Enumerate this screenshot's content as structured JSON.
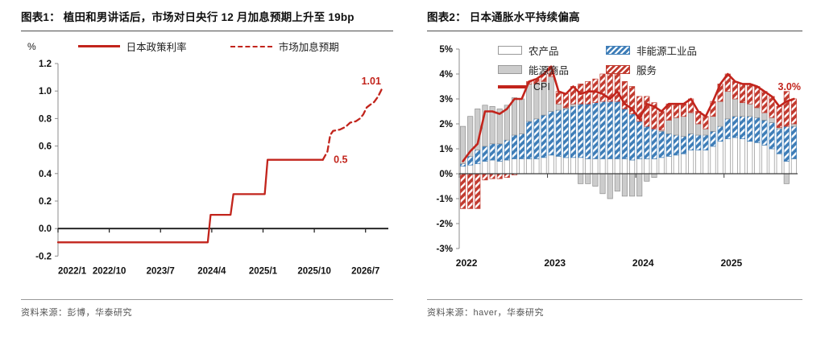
{
  "figure1": {
    "title": "图表1：  植田和男讲话后，市场对日央行 12 月加息预期上升至 19bp",
    "unit": "%",
    "legend": [
      {
        "label": "日本政策利率"
      },
      {
        "label": "市场加息预期"
      }
    ],
    "source": "资料来源：彭博，华泰研究"
  },
  "figure2": {
    "title": "图表2：  日本通胀水平持续偏高",
    "legend": [
      {
        "label": "农产品"
      },
      {
        "label": "非能源工业品"
      },
      {
        "label": "能源商品"
      },
      {
        "label": "服务"
      },
      {
        "label": "CPI"
      }
    ],
    "source": "资料来源：haver，华泰研究"
  },
  "colors": {
    "red_line": "#C2241C",
    "red_hatch": "#C23B30",
    "blue_hatch": "#3F7EB8",
    "gray_bar": "#CCCCCC",
    "bar_border": "#8F8F8F",
    "axis_dark": "#1A1A1A",
    "axis_gray": "#8C8C8C"
  },
  "chart_data": [
    {
      "type": "line",
      "title": "植田和男讲话后，市场对日央行12月加息预期上升至19bp",
      "ylabel": "%",
      "ylim": [
        -0.2,
        1.2
      ],
      "yticks": [
        -0.2,
        0.0,
        0.2,
        0.4,
        0.6,
        0.8,
        1.0,
        1.2
      ],
      "x_unit": "months since 2022/1",
      "xlim": [
        0,
        58
      ],
      "xticks": [
        {
          "pos": 0,
          "label": "2022/1"
        },
        {
          "pos": 9,
          "label": "2022/10"
        },
        {
          "pos": 18,
          "label": "2023/7"
        },
        {
          "pos": 27,
          "label": "2024/4"
        },
        {
          "pos": 36,
          "label": "2025/1"
        },
        {
          "pos": 45,
          "label": "2025/10"
        },
        {
          "pos": 54,
          "label": "2026/7"
        }
      ],
      "series": [
        {
          "name": "日本政策利率",
          "style": "solid",
          "points": [
            [
              0,
              -0.1
            ],
            [
              26.3,
              -0.1
            ],
            [
              26.8,
              0.1
            ],
            [
              30.3,
              0.1
            ],
            [
              30.8,
              0.25
            ],
            [
              36.3,
              0.25
            ],
            [
              36.8,
              0.5
            ],
            [
              46.5,
              0.5
            ]
          ]
        },
        {
          "name": "市场加息预期",
          "style": "dashed",
          "points": [
            [
              46.5,
              0.5
            ],
            [
              47.3,
              0.56
            ],
            [
              47.8,
              0.68
            ],
            [
              48.3,
              0.71
            ],
            [
              49.5,
              0.72
            ],
            [
              50.5,
              0.74
            ],
            [
              51.3,
              0.77
            ],
            [
              52.3,
              0.78
            ],
            [
              53.0,
              0.8
            ],
            [
              53.6,
              0.83
            ],
            [
              54.2,
              0.88
            ],
            [
              54.8,
              0.9
            ],
            [
              55.5,
              0.92
            ],
            [
              56.2,
              0.96
            ],
            [
              56.8,
              1.01
            ]
          ]
        }
      ],
      "annotations": [
        {
          "x": 48.4,
          "y": 0.5,
          "text": "0.5",
          "anchor": "start"
        },
        {
          "x": 55.0,
          "y": 1.07,
          "text": "1.01",
          "anchor": "middle"
        }
      ],
      "legend_position": "top"
    },
    {
      "type": "stacked-bar-line",
      "title": "日本通胀水平持续偏高",
      "ylim": [
        -3,
        5
      ],
      "yticks": [
        5,
        4,
        3,
        2,
        1,
        0,
        -1,
        -2,
        -3
      ],
      "ytick_suffix": "%",
      "categories": [
        "2022-01",
        "2022-02",
        "2022-03",
        "2022-04",
        "2022-05",
        "2022-06",
        "2022-07",
        "2022-08",
        "2022-09",
        "2022-10",
        "2022-11",
        "2022-12",
        "2023-01",
        "2023-02",
        "2023-03",
        "2023-04",
        "2023-05",
        "2023-06",
        "2023-07",
        "2023-08",
        "2023-09",
        "2023-10",
        "2023-11",
        "2023-12",
        "2024-01",
        "2024-02",
        "2024-03",
        "2024-04",
        "2024-05",
        "2024-06",
        "2024-07",
        "2024-08",
        "2024-09",
        "2024-10",
        "2024-11",
        "2024-12",
        "2025-01",
        "2025-02",
        "2025-03",
        "2025-04",
        "2025-05",
        "2025-06",
        "2025-07",
        "2025-08",
        "2025-09",
        "2025-10"
      ],
      "xticks": [
        {
          "index": 0,
          "label": "2022"
        },
        {
          "index": 12,
          "label": "2023"
        },
        {
          "index": 24,
          "label": "2024"
        },
        {
          "index": 36,
          "label": "2025"
        }
      ],
      "series": [
        {
          "name": "农产品",
          "swatch": "white",
          "values": [
            0.3,
            0.35,
            0.4,
            0.5,
            0.55,
            0.5,
            0.55,
            0.6,
            0.6,
            0.6,
            0.6,
            0.65,
            0.75,
            0.7,
            0.65,
            0.65,
            0.65,
            0.6,
            0.6,
            0.6,
            0.6,
            0.6,
            0.6,
            0.55,
            0.6,
            0.6,
            0.6,
            0.65,
            0.7,
            0.75,
            0.8,
            0.95,
            0.95,
            0.95,
            1.1,
            1.3,
            1.4,
            1.45,
            1.4,
            1.3,
            1.25,
            1.15,
            1.0,
            0.8,
            0.5,
            0.6
          ]
        },
        {
          "name": "非能源工业品",
          "swatch": "blue-hatch",
          "values": [
            0.1,
            0.35,
            0.55,
            0.6,
            0.65,
            0.7,
            0.8,
            0.95,
            1.0,
            1.5,
            1.6,
            1.7,
            1.75,
            1.85,
            1.95,
            2.05,
            2.15,
            2.2,
            2.25,
            2.3,
            2.3,
            2.3,
            2.0,
            1.85,
            1.5,
            1.3,
            1.2,
            1.05,
            0.9,
            0.8,
            0.7,
            0.65,
            0.6,
            0.6,
            0.6,
            0.6,
            0.8,
            0.85,
            0.9,
            1.0,
            1.0,
            1.0,
            1.05,
            1.0,
            1.4,
            1.3
          ]
        },
        {
          "name": "能源商品",
          "swatch": "gray",
          "values": [
            1.5,
            1.6,
            1.65,
            1.65,
            1.5,
            1.4,
            1.4,
            1.5,
            1.4,
            1.5,
            1.4,
            1.35,
            1.4,
            0.25,
            0.05,
            0.1,
            -0.4,
            -0.4,
            -0.5,
            -0.8,
            -1.0,
            -0.7,
            -0.9,
            -0.9,
            -0.9,
            -0.3,
            -0.15,
            0.05,
            0.55,
            0.7,
            0.8,
            0.85,
            0.45,
            0.25,
            0.6,
            1.0,
            1.1,
            0.7,
            0.55,
            0.5,
            0.4,
            0.3,
            0.2,
            0.05,
            -0.4,
            0.1
          ]
        },
        {
          "name": "服务",
          "swatch": "red-hatch",
          "values": [
            -1.4,
            -1.4,
            -1.4,
            -0.25,
            -0.2,
            -0.2,
            -0.15,
            -0.05,
            0.0,
            0.1,
            0.2,
            0.3,
            0.4,
            0.5,
            0.55,
            0.7,
            0.8,
            0.9,
            0.95,
            1.1,
            1.1,
            1.1,
            1.1,
            1.1,
            1.0,
            1.2,
            1.05,
            0.75,
            0.65,
            0.55,
            0.5,
            0.55,
            0.5,
            0.5,
            0.6,
            0.7,
            0.7,
            0.7,
            0.75,
            0.8,
            0.85,
            0.85,
            0.85,
            0.85,
            1.4,
            1.0
          ]
        }
      ],
      "line_series": {
        "name": "CPI",
        "values": [
          0.5,
          0.9,
          1.2,
          2.5,
          2.5,
          2.4,
          2.6,
          3.0,
          3.0,
          3.7,
          3.8,
          4.0,
          4.3,
          3.3,
          3.2,
          3.5,
          3.2,
          3.3,
          3.3,
          3.2,
          3.0,
          3.3,
          2.8,
          2.6,
          2.2,
          2.8,
          2.7,
          2.5,
          2.8,
          2.8,
          2.8,
          3.0,
          2.5,
          2.3,
          2.9,
          3.6,
          4.0,
          3.7,
          3.6,
          3.6,
          3.5,
          3.3,
          3.1,
          2.7,
          2.9,
          3.0
        ]
      },
      "annotation": {
        "text": "3.0%",
        "y": 3.35
      },
      "legend_position": "top-left-inside"
    }
  ]
}
